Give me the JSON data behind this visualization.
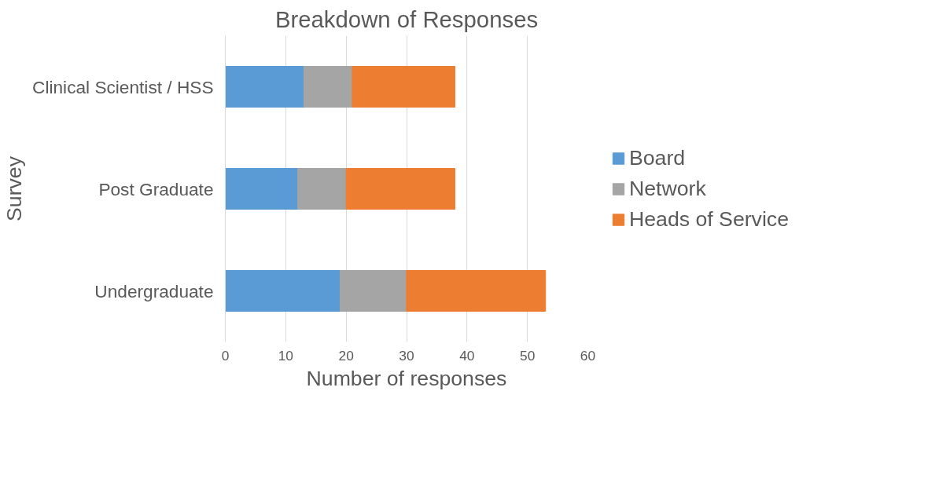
{
  "chart_data": {
    "type": "bar",
    "orientation": "horizontal",
    "stacked": true,
    "title": "Breakdown of Responses",
    "xlabel": "Number of responses",
    "ylabel": "Survey",
    "categories": [
      "Clinical Scientist / HSS",
      "Post Graduate",
      "Undergraduate"
    ],
    "series": [
      {
        "name": "Board",
        "color": "#5b9bd5",
        "values": [
          13,
          12,
          19
        ]
      },
      {
        "name": "Network",
        "color": "#a5a5a5",
        "values": [
          8,
          8,
          11
        ]
      },
      {
        "name": "Heads of Service",
        "color": "#ed7d31",
        "values": [
          17,
          18,
          23
        ]
      }
    ],
    "xlim": [
      0,
      60
    ],
    "xticks": [
      0,
      10,
      20,
      30,
      40,
      50,
      60
    ],
    "grid": "x",
    "legend": "right"
  }
}
